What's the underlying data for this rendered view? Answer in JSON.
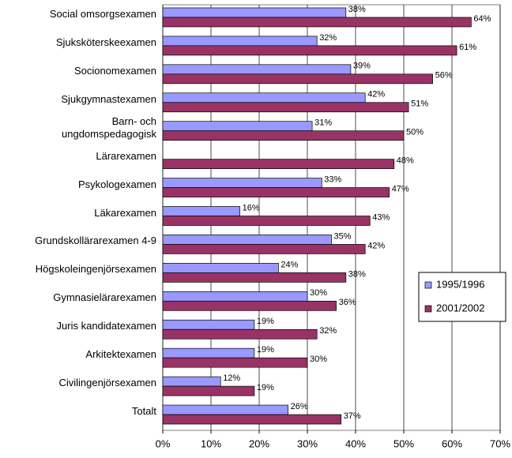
{
  "chart_data": {
    "type": "barh",
    "categories": [
      "Social omsorgsexamen",
      "Sjuksköterskeexamen",
      "Socionomexamen",
      "Sjukgymnastexamen",
      "Barn- och\nungdomspedagogisk",
      "Lärarexamen",
      "Psykologexamen",
      "Läkarexamen",
      "Grundskollärarexamen 4-9",
      "Högskoleingenjörsexamen",
      "Gymnasielärarexamen",
      "Juris kandidatexamen",
      "Arkitektexamen",
      "Civilingenjörsexamen",
      "Totalt"
    ],
    "series": [
      {
        "name": "1995/1996",
        "color": "#9999ff",
        "values": [
          38,
          32,
          39,
          42,
          31,
          null,
          33,
          16,
          35,
          24,
          30,
          19,
          19,
          12,
          26
        ],
        "value_labels": [
          "38%",
          "32%",
          "39%",
          "42%",
          "31%",
          null,
          "33%",
          "16%",
          "35%",
          "24%",
          "30%",
          "19%",
          "19%",
          "12%",
          "26%"
        ]
      },
      {
        "name": "2001/2002",
        "color": "#993366",
        "values": [
          64,
          61,
          56,
          51,
          50,
          48,
          47,
          43,
          42,
          38,
          36,
          32,
          30,
          19,
          37
        ],
        "value_labels": [
          "64%",
          "61%",
          "56%",
          "51%",
          "50%",
          "48%",
          "47%",
          "43%",
          "42%",
          "38%",
          "36%",
          "32%",
          "30%",
          "19%",
          "37%"
        ]
      }
    ],
    "xlim": [
      0,
      70
    ],
    "xticks": [
      {
        "value": 0,
        "label": "0%"
      },
      {
        "value": 10,
        "label": "10%"
      },
      {
        "value": 20,
        "label": "20%"
      },
      {
        "value": 30,
        "label": "30%"
      },
      {
        "value": 40,
        "label": "40%"
      },
      {
        "value": 50,
        "label": "50%"
      },
      {
        "value": 60,
        "label": "60%"
      },
      {
        "value": 70,
        "label": "70%"
      }
    ],
    "grid": true,
    "legend": "right"
  }
}
